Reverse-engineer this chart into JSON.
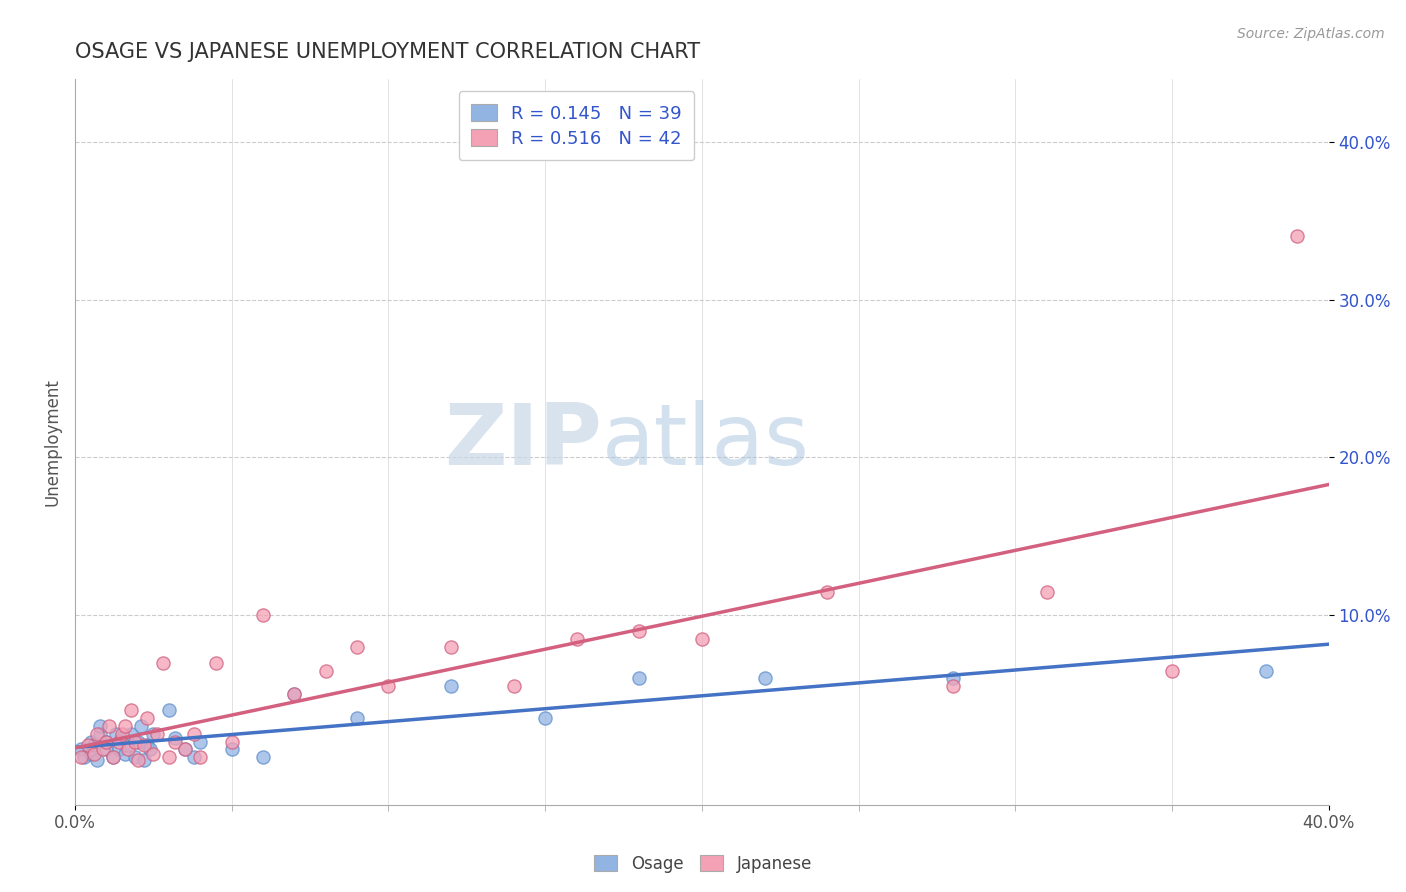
{
  "title": "OSAGE VS JAPANESE UNEMPLOYMENT CORRELATION CHART",
  "source": "Source: ZipAtlas.com",
  "xlabel": "",
  "ylabel": "Unemployment",
  "xlim": [
    0.0,
    0.4
  ],
  "ylim": [
    -0.02,
    0.44
  ],
  "xticks": [
    0.0,
    0.4
  ],
  "xtick_labels": [
    "0.0%",
    "40.0%"
  ],
  "yticks": [
    0.1,
    0.2,
    0.3,
    0.4
  ],
  "ytick_labels": [
    "10.0%",
    "20.0%",
    "30.0%",
    "40.0%"
  ],
  "osage_color": "#92b4e3",
  "osage_edge_color": "#6090cc",
  "japanese_color": "#f4a0b5",
  "japanese_edge_color": "#d06080",
  "osage_line_color": "#4472c4",
  "japanese_line_color": "#d46080",
  "osage_R": 0.145,
  "osage_N": 39,
  "japanese_R": 0.516,
  "japanese_N": 42,
  "legend_text_color": "#3355cc",
  "watermark_zip": "ZIP",
  "watermark_atlas": "atlas",
  "background_color": "#ffffff",
  "grid_color": "#cccccc",
  "osage_x": [
    0.002,
    0.003,
    0.005,
    0.005,
    0.006,
    0.007,
    0.008,
    0.008,
    0.01,
    0.01,
    0.012,
    0.013,
    0.014,
    0.015,
    0.016,
    0.017,
    0.018,
    0.019,
    0.02,
    0.021,
    0.022,
    0.023,
    0.024,
    0.025,
    0.03,
    0.032,
    0.035,
    0.038,
    0.04,
    0.05,
    0.06,
    0.07,
    0.09,
    0.12,
    0.15,
    0.18,
    0.22,
    0.28,
    0.38
  ],
  "osage_y": [
    0.015,
    0.01,
    0.02,
    0.012,
    0.018,
    0.008,
    0.025,
    0.03,
    0.015,
    0.02,
    0.01,
    0.025,
    0.015,
    0.022,
    0.012,
    0.018,
    0.025,
    0.01,
    0.02,
    0.03,
    0.008,
    0.018,
    0.015,
    0.025,
    0.04,
    0.022,
    0.015,
    0.01,
    0.02,
    0.015,
    0.01,
    0.05,
    0.035,
    0.055,
    0.035,
    0.06,
    0.06,
    0.06,
    0.065
  ],
  "japanese_x": [
    0.002,
    0.004,
    0.006,
    0.007,
    0.009,
    0.01,
    0.011,
    0.012,
    0.014,
    0.015,
    0.016,
    0.017,
    0.018,
    0.019,
    0.02,
    0.022,
    0.023,
    0.025,
    0.026,
    0.028,
    0.03,
    0.032,
    0.035,
    0.038,
    0.04,
    0.045,
    0.05,
    0.06,
    0.07,
    0.08,
    0.09,
    0.1,
    0.12,
    0.14,
    0.16,
    0.18,
    0.2,
    0.24,
    0.28,
    0.31,
    0.35,
    0.39
  ],
  "japanese_y": [
    0.01,
    0.018,
    0.012,
    0.025,
    0.015,
    0.02,
    0.03,
    0.01,
    0.02,
    0.025,
    0.03,
    0.015,
    0.04,
    0.02,
    0.008,
    0.018,
    0.035,
    0.012,
    0.025,
    0.07,
    0.01,
    0.02,
    0.015,
    0.025,
    0.01,
    0.07,
    0.02,
    0.1,
    0.05,
    0.065,
    0.08,
    0.055,
    0.08,
    0.055,
    0.085,
    0.09,
    0.085,
    0.115,
    0.055,
    0.115,
    0.065,
    0.34
  ]
}
